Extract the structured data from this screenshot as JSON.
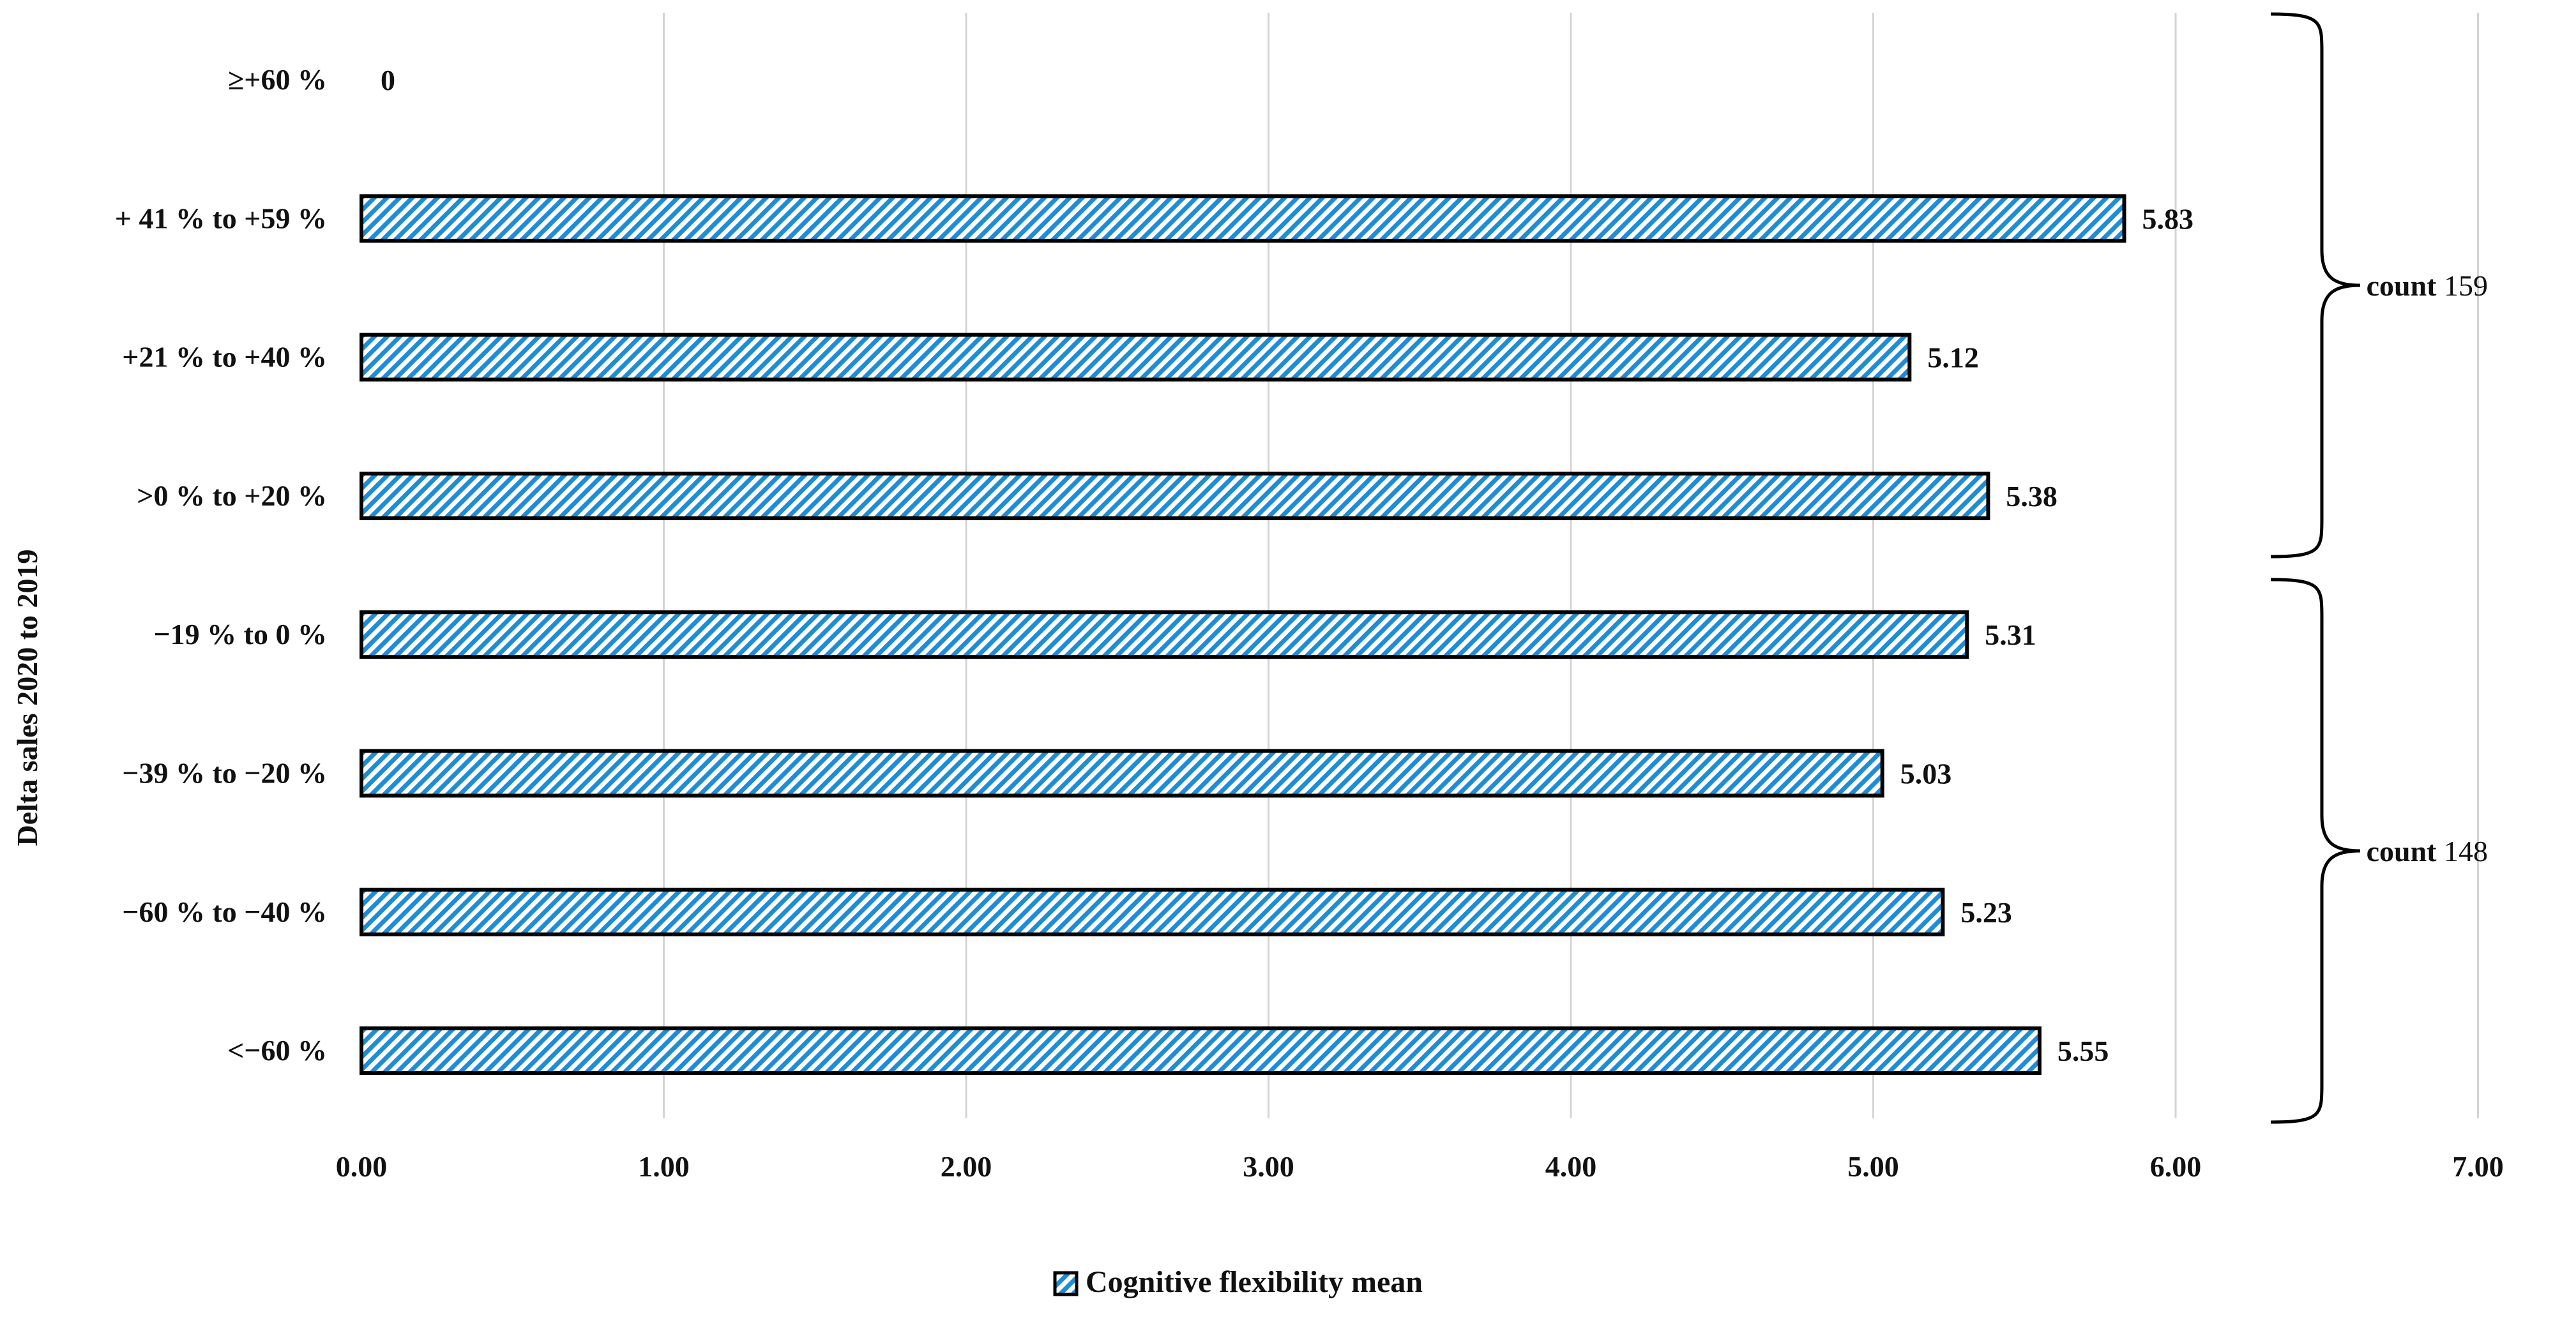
{
  "chart_data": {
    "type": "bar",
    "orientation": "horizontal",
    "categories": [
      "≥+60 %",
      "+ 41 % to +59 %",
      "+21 % to +40 %",
      ">0 % to +20 %",
      "−19 % to 0 %",
      "−39 % to −20 %",
      "−60 % to −40 %",
      "<−60 %"
    ],
    "series": [
      {
        "name": "Cognitive flexibility mean",
        "values": [
          0,
          5.83,
          5.12,
          5.38,
          5.31,
          5.03,
          5.23,
          5.55
        ],
        "labels": [
          "0",
          "5.83",
          "5.12",
          "5.38",
          "5.31",
          "5.03",
          "5.23",
          "5.55"
        ]
      }
    ],
    "xlabel": "",
    "ylabel": "Delta sales 2020 to 2019",
    "xlim": [
      0,
      7
    ],
    "xticks": [
      "0.00",
      "1.00",
      "2.00",
      "3.00",
      "4.00",
      "5.00",
      "6.00",
      "7.00"
    ],
    "grid": true,
    "legend": "bottom-center",
    "bar_fill_color": "#1f8dd6",
    "bar_edge_color": "#000000",
    "bar_pattern": "diagonal-hatch",
    "annotations": [
      {
        "bold": "count",
        "value": "159"
      },
      {
        "bold": "count",
        "value": "148"
      }
    ]
  }
}
